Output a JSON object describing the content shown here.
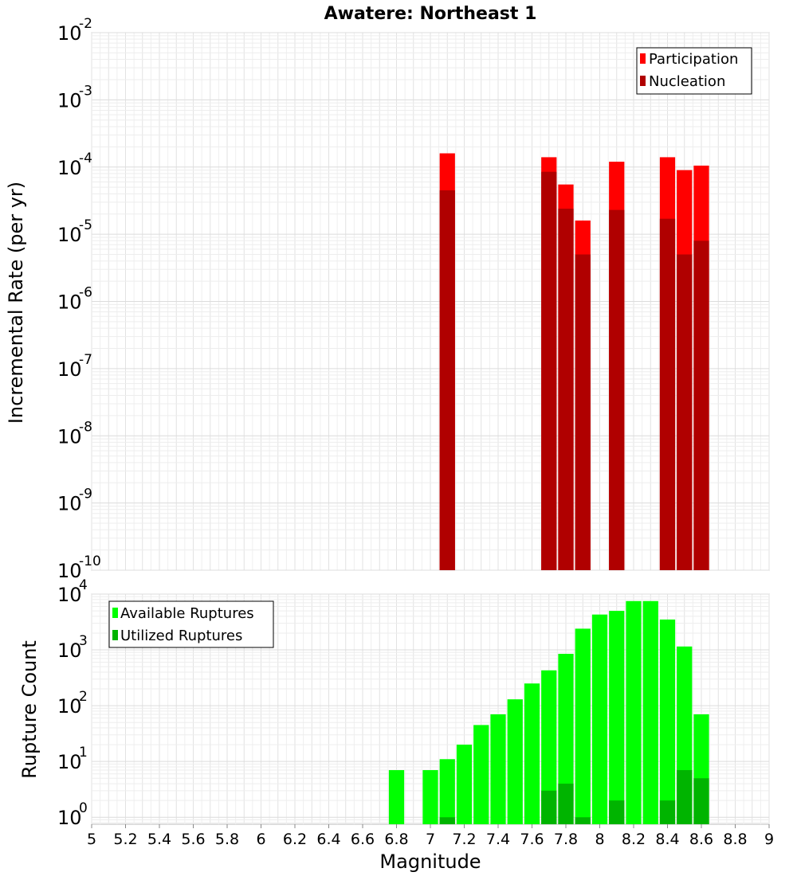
{
  "chart_data": [
    {
      "type": "bar",
      "title": "Awatere: Northeast 1",
      "xlabel": "Magnitude",
      "ylabel": "Incremental Rate (per yr)",
      "yscale": "log",
      "xlim": [
        5,
        9
      ],
      "ylim": [
        1e-10,
        0.01
      ],
      "bin_width": 0.1,
      "y_tick_exponents": [
        -10,
        -9,
        -8,
        -7,
        -6,
        -5,
        -4,
        -3,
        -2
      ],
      "legend": {
        "position": "top-right",
        "entries": [
          "Participation",
          "Nucleation"
        ]
      },
      "colors": {
        "Participation": "#ff0000",
        "Nucleation": "#b00000"
      },
      "series": [
        {
          "name": "Participation",
          "x": [
            7.1,
            7.7,
            7.8,
            7.9,
            8.1,
            8.4,
            8.5,
            8.6
          ],
          "values": [
            0.00016,
            0.00014,
            5.5e-05,
            1.6e-05,
            0.00012,
            0.00014,
            9e-05,
            0.000105
          ]
        },
        {
          "name": "Nucleation",
          "x": [
            7.1,
            7.7,
            7.8,
            7.9,
            8.1,
            8.4,
            8.5,
            8.6
          ],
          "values": [
            4.5e-05,
            8.5e-05,
            2.4e-05,
            5e-06,
            2.3e-05,
            1.7e-05,
            5e-06,
            8e-06
          ]
        }
      ]
    },
    {
      "type": "bar",
      "title": "",
      "xlabel": "Magnitude",
      "ylabel": "Rupture Count",
      "yscale": "log",
      "xlim": [
        5,
        9
      ],
      "ylim": [
        0.75,
        10000
      ],
      "bin_width": 0.1,
      "y_tick_exponents": [
        0,
        1,
        2,
        3,
        4
      ],
      "x_ticks": [
        "5",
        "5.2",
        "5.4",
        "5.6",
        "5.8",
        "6",
        "6.2",
        "6.4",
        "6.6",
        "6.8",
        "7",
        "7.2",
        "7.4",
        "7.6",
        "7.8",
        "8",
        "8.2",
        "8.4",
        "8.6",
        "8.8",
        "9"
      ],
      "legend": {
        "position": "top-left",
        "entries": [
          "Available Ruptures",
          "Utilized Ruptures"
        ]
      },
      "colors": {
        "Available Ruptures": "#00ff00",
        "Utilized Ruptures": "#00b400"
      },
      "series": [
        {
          "name": "Available Ruptures",
          "x": [
            6.8,
            7.0,
            7.1,
            7.2,
            7.3,
            7.4,
            7.5,
            7.6,
            7.7,
            7.8,
            7.9,
            8.0,
            8.1,
            8.2,
            8.3,
            8.4,
            8.5,
            8.6
          ],
          "values": [
            7,
            7,
            11,
            20,
            45,
            70,
            130,
            250,
            430,
            850,
            2400,
            4300,
            5000,
            7500,
            7500,
            3500,
            1150,
            70
          ]
        },
        {
          "name": "Utilized Ruptures",
          "x": [
            7.1,
            7.7,
            7.8,
            7.9,
            8.1,
            8.4,
            8.5,
            8.6
          ],
          "values": [
            1,
            3,
            4,
            1,
            2,
            2,
            7,
            5
          ]
        }
      ]
    }
  ]
}
